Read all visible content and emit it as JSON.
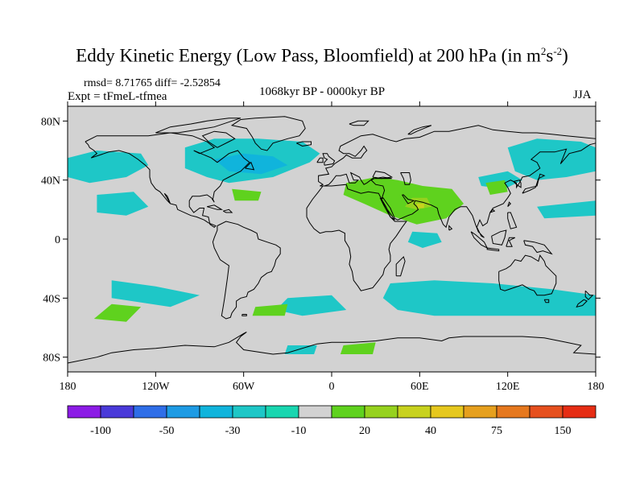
{
  "header": {
    "title_main": "Eddy Kinetic Energy (Low Pass, Bloomfield) at 200 hPa (in m",
    "title_sup1": "2",
    "title_mid": "s",
    "title_sup2": "-2",
    "title_end": ")",
    "stats": "rmsd= 8.71765 diff= -2.52854",
    "experiment": "Expt = tFmeL-tfmea",
    "period": "1068kyr BP - 0000kyr BP",
    "season": "JJA"
  },
  "map": {
    "background_color": "#d2d2d2",
    "lon_range": [
      -180,
      180
    ],
    "lat_range": [
      -90,
      90
    ],
    "lat_ticks": [
      {
        "lat": 80,
        "label": "80N"
      },
      {
        "lat": 40,
        "label": "40N"
      },
      {
        "lat": 0,
        "label": "0"
      },
      {
        "lat": -40,
        "label": "40S"
      },
      {
        "lat": -80,
        "label": "80S"
      }
    ],
    "lon_ticks": [
      {
        "lon": -180,
        "label": "180"
      },
      {
        "lon": -120,
        "label": "120W"
      },
      {
        "lon": -60,
        "label": "60W"
      },
      {
        "lon": 0,
        "label": "0"
      },
      {
        "lon": 60,
        "label": "60E"
      },
      {
        "lon": 120,
        "label": "120E"
      },
      {
        "lon": 180,
        "label": "180"
      }
    ]
  },
  "colorbar": {
    "colors": [
      "#8c1ce6",
      "#4a3ad9",
      "#2f6ee8",
      "#1e9be4",
      "#10b4dc",
      "#1ec7c7",
      "#19d6b0",
      "#d2d2d2",
      "#5fd21e",
      "#96d21e",
      "#c8d21e",
      "#e6c81e",
      "#e6a01e",
      "#e6781e",
      "#e6501e",
      "#e62d14"
    ],
    "labels": [
      {
        "boundary": 2,
        "text": "-100"
      },
      {
        "boundary": 4,
        "text": "-50"
      },
      {
        "boundary": 6,
        "text": "-30"
      },
      {
        "boundary": 8,
        "text": "-10"
      },
      {
        "boundary": 10,
        "text": "20"
      },
      {
        "boundary": 12,
        "text": "40"
      },
      {
        "boundary": 14,
        "text": "75"
      },
      {
        "boundary": 16,
        "text": "150"
      }
    ]
  },
  "anomaly_regions": [
    {
      "color": "#1ec7c7",
      "name": "north-atlantic-negative",
      "points": [
        [
          -100,
          62
        ],
        [
          -80,
          68
        ],
        [
          -50,
          68
        ],
        [
          -20,
          66
        ],
        [
          -8,
          58
        ],
        [
          -15,
          52
        ],
        [
          -40,
          42
        ],
        [
          -70,
          38
        ],
        [
          -85,
          42
        ],
        [
          -100,
          48
        ]
      ]
    },
    {
      "color": "#10b4dc",
      "name": "north-atlantic-core",
      "points": [
        [
          -80,
          54
        ],
        [
          -60,
          58
        ],
        [
          -40,
          56
        ],
        [
          -30,
          50
        ],
        [
          -48,
          44
        ],
        [
          -70,
          46
        ]
      ]
    },
    {
      "color": "#1ec7c7",
      "name": "north-pacific-negative",
      "points": [
        [
          -180,
          55
        ],
        [
          -160,
          60
        ],
        [
          -130,
          58
        ],
        [
          -125,
          50
        ],
        [
          -140,
          42
        ],
        [
          -165,
          38
        ],
        [
          -180,
          42
        ]
      ]
    },
    {
      "color": "#1ec7c7",
      "name": "east-pacific-negative",
      "points": [
        [
          -160,
          30
        ],
        [
          -135,
          32
        ],
        [
          -125,
          22
        ],
        [
          -140,
          16
        ],
        [
          -160,
          18
        ]
      ]
    },
    {
      "color": "#1ec7c7",
      "name": "east-asia-negative",
      "points": [
        [
          120,
          62
        ],
        [
          140,
          68
        ],
        [
          170,
          66
        ],
        [
          180,
          62
        ],
        [
          180,
          46
        ],
        [
          160,
          42
        ],
        [
          140,
          40
        ],
        [
          125,
          46
        ]
      ]
    },
    {
      "color": "#1ec7c7",
      "name": "east-asia-negative-2",
      "points": [
        [
          100,
          42
        ],
        [
          120,
          46
        ],
        [
          130,
          40
        ],
        [
          118,
          34
        ],
        [
          102,
          36
        ]
      ]
    },
    {
      "color": "#1ec7c7",
      "name": "pacific-strip",
      "points": [
        [
          140,
          22
        ],
        [
          180,
          26
        ],
        [
          180,
          16
        ],
        [
          145,
          14
        ]
      ]
    },
    {
      "color": "#5fd21e",
      "name": "eurasia-positive",
      "points": [
        [
          10,
          38
        ],
        [
          30,
          42
        ],
        [
          45,
          40
        ],
        [
          62,
          36
        ],
        [
          82,
          34
        ],
        [
          90,
          24
        ],
        [
          78,
          14
        ],
        [
          58,
          10
        ],
        [
          40,
          16
        ],
        [
          22,
          24
        ],
        [
          8,
          30
        ]
      ]
    },
    {
      "color": "#96d21e",
      "name": "arabia-core",
      "points": [
        [
          55,
          28
        ],
        [
          65,
          28
        ],
        [
          68,
          22
        ],
        [
          58,
          20
        ],
        [
          50,
          22
        ]
      ]
    },
    {
      "color": "#c8d21e",
      "name": "arabia-peak",
      "points": [
        [
          58,
          24
        ],
        [
          63,
          24
        ],
        [
          63,
          21
        ],
        [
          58,
          21
        ]
      ]
    },
    {
      "color": "#5fd21e",
      "name": "china-positive",
      "points": [
        [
          105,
          38
        ],
        [
          118,
          40
        ],
        [
          120,
          32
        ],
        [
          108,
          30
        ]
      ]
    },
    {
      "color": "#5fd21e",
      "name": "atlantic-subtropic-positive",
      "points": [
        [
          -68,
          34
        ],
        [
          -48,
          32
        ],
        [
          -50,
          26
        ],
        0,
        [
          -66,
          26
        ]
      ]
    },
    {
      "color": "#1ec7c7",
      "name": "indian-equatorial-negative",
      "points": [
        [
          55,
          5
        ],
        [
          72,
          4
        ],
        [
          75,
          -2
        ],
        [
          62,
          -6
        ],
        [
          52,
          -2
        ]
      ]
    },
    {
      "color": "#1ec7c7",
      "name": "south-indian-negative",
      "points": [
        [
          40,
          -30
        ],
        [
          70,
          -28
        ],
        [
          110,
          -30
        ],
        [
          150,
          -34
        ],
        [
          180,
          -38
        ],
        [
          180,
          -52
        ],
        [
          140,
          -52
        ],
        [
          100,
          -52
        ],
        [
          70,
          -52
        ],
        [
          45,
          -48
        ],
        [
          35,
          -40
        ]
      ]
    },
    {
      "color": "#1ec7c7",
      "name": "south-atlantic-negative",
      "points": [
        [
          -30,
          -40
        ],
        [
          0,
          -38
        ],
        [
          10,
          -48
        ],
        [
          -20,
          -52
        ],
        [
          -38,
          -48
        ]
      ]
    },
    {
      "color": "#1ec7c7",
      "name": "south-pacific-negative",
      "points": [
        [
          -150,
          -28
        ],
        [
          -120,
          -32
        ],
        [
          -90,
          -38
        ],
        [
          -110,
          -46
        ],
        [
          -150,
          -40
        ]
      ]
    },
    {
      "color": "#5fd21e",
      "name": "south-pacific-positive",
      "points": [
        [
          -150,
          -44
        ],
        [
          -130,
          -46
        ],
        [
          -140,
          -56
        ],
        [
          -162,
          -54
        ]
      ]
    },
    {
      "color": "#5fd21e",
      "name": "south-atlantic-positive",
      "points": [
        [
          -52,
          -46
        ],
        [
          -30,
          -44
        ],
        [
          -32,
          -52
        ],
        [
          -54,
          -52
        ]
      ]
    },
    {
      "color": "#5fd21e",
      "name": "south-indian-positive",
      "points": [
        [
          8,
          -72
        ],
        [
          30,
          -70
        ],
        [
          28,
          -78
        ],
        [
          6,
          -78
        ]
      ]
    },
    {
      "color": "#1ec7c7",
      "name": "antarctic-negative",
      "points": [
        [
          -30,
          -72
        ],
        [
          -10,
          -72
        ],
        [
          -12,
          -78
        ],
        0,
        [
          -32,
          -78
        ]
      ]
    }
  ]
}
